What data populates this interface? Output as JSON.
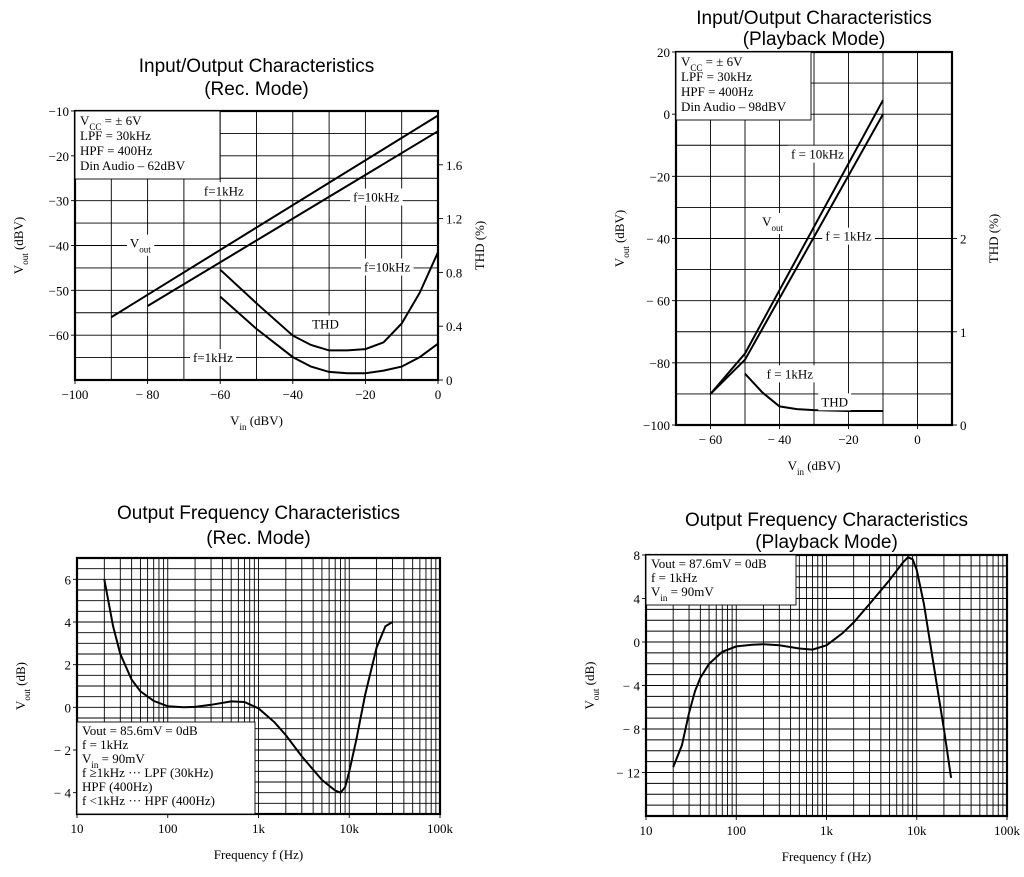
{
  "chart_data": [
    {
      "id": "rec-io",
      "type": "line",
      "title": [
        "Input/Output Characteristics",
        "(Rec. Mode)"
      ],
      "xlabel": [
        "V",
        "in",
        " (dBV)"
      ],
      "ylabel": [
        "V",
        "out",
        " (dBV)"
      ],
      "y2label": "THD (%)",
      "xlim": [
        -100,
        0
      ],
      "ylim": [
        -70,
        -10
      ],
      "y2lim": [
        0,
        2.0
      ],
      "xticks": [
        -100,
        -80,
        -60,
        -40,
        -20,
        0
      ],
      "xtick_labels": [
        "−100",
        "− 80",
        "−60",
        "−40",
        "−20",
        "0"
      ],
      "yticks": [
        -10,
        -20,
        -30,
        -40,
        -50,
        -60
      ],
      "ytick_labels": [
        "−10",
        "−20",
        "−30",
        "−40",
        "−50",
        "−60"
      ],
      "y2ticks": [
        0,
        0.4,
        0.8,
        1.2,
        1.6
      ],
      "y2tick_labels": [
        "0",
        "0.4",
        "0.8",
        "1.2",
        "1.6"
      ],
      "grid": true,
      "info_box": [
        [
          "V",
          "CC",
          " = ± 6V"
        ],
        [
          "LPF = 30kHz"
        ],
        [
          "HPF = 400Hz"
        ],
        [
          "Din Audio – 62dBV"
        ]
      ],
      "series": [
        {
          "axis": "left",
          "x": [
            -90,
            0
          ],
          "y": [
            -56,
            -11
          ]
        },
        {
          "axis": "left",
          "x": [
            -80,
            0
          ],
          "y": [
            -53.5,
            -14.5
          ]
        },
        {
          "axis": "right",
          "x": [
            -60,
            -50,
            -40,
            -35,
            -30,
            -25,
            -20,
            -15,
            -10,
            -5,
            0
          ],
          "y": [
            0.82,
            0.57,
            0.33,
            0.26,
            0.22,
            0.22,
            0.23,
            0.28,
            0.42,
            0.65,
            0.95
          ]
        },
        {
          "axis": "right",
          "x": [
            -60,
            -50,
            -40,
            -35,
            -30,
            -25,
            -20,
            -15,
            -10,
            -5,
            0
          ],
          "y": [
            0.62,
            0.38,
            0.17,
            0.1,
            0.06,
            0.05,
            0.05,
            0.07,
            0.1,
            0.17,
            0.27
          ]
        }
      ],
      "annotations": [
        {
          "parts": [
            "V",
            "out"
          ],
          "x": -82,
          "y": -40.5
        },
        {
          "parts": [
            "f=1kHz"
          ],
          "x": -59,
          "y": -28.8
        },
        {
          "parts": [
            "f=10kHz"
          ],
          "x": -17,
          "y": -30.2
        },
        {
          "parts": [
            "f=10kHz"
          ],
          "x": -14,
          "y": -45.8
        },
        {
          "parts": [
            "THD"
          ],
          "x": -31,
          "y": -58.5
        },
        {
          "parts": [
            "f=1kHz"
          ],
          "x": -62,
          "y": -66
        }
      ]
    },
    {
      "id": "play-io",
      "type": "line",
      "title": [
        "Input/Output Characteristics",
        "(Playback Mode)"
      ],
      "xlabel": [
        "V",
        "in",
        " (dBV)"
      ],
      "ylabel": [
        "V",
        "out",
        " (dBV)"
      ],
      "y2label": "THD (%)",
      "xlim": [
        -70,
        10
      ],
      "ylim": [
        -100,
        20
      ],
      "y2lim": [
        0,
        4
      ],
      "xticks": [
        -60,
        -40,
        -20,
        0
      ],
      "xtick_labels": [
        "− 60",
        "− 40",
        "−20",
        "0"
      ],
      "yticks": [
        20,
        0,
        -20,
        -40,
        -60,
        -80,
        -100
      ],
      "ytick_labels": [
        "20",
        "0",
        "−20",
        "− 40",
        "− 60",
        "−80",
        "−100"
      ],
      "y2ticks": [
        0,
        1,
        2
      ],
      "y2tick_labels": [
        "0",
        "1",
        "2"
      ],
      "grid": true,
      "info_box": [
        [
          "V",
          "CC",
          " = ± 6V"
        ],
        [
          "LPF = 30kHz"
        ],
        [
          "HPF = 400Hz"
        ],
        [
          "Din Audio – 98dBV"
        ]
      ],
      "series": [
        {
          "axis": "left",
          "x": [
            -60,
            -50,
            -10
          ],
          "y": [
            -90,
            -77,
            4.5
          ]
        },
        {
          "axis": "left",
          "x": [
            -60,
            -50,
            -10
          ],
          "y": [
            -90,
            -79,
            0
          ]
        },
        {
          "axis": "right",
          "x": [
            -50,
            -45,
            -40,
            -35,
            -30,
            -20,
            -10
          ],
          "y": [
            0.55,
            0.35,
            0.2,
            0.17,
            0.16,
            0.15,
            0.15
          ]
        }
      ],
      "annotations": [
        {
          "parts": [
            "f = 10kHz"
          ],
          "x": -29,
          "y": -14.3
        },
        {
          "parts": [
            "V",
            "out"
          ],
          "x": -42,
          "y": -36
        },
        {
          "parts": [
            "f = 1kHz"
          ],
          "x": -20,
          "y": -40.7
        },
        {
          "parts": [
            "f = 1kHz"
          ],
          "x": -37,
          "y": -85
        },
        {
          "parts": [
            "THD"
          ],
          "x": -24,
          "y": -94
        }
      ]
    },
    {
      "id": "rec-freq",
      "type": "line",
      "title": [
        "Output Frequency Characteristics",
        "(Rec. Mode)"
      ],
      "xlabel": [
        "Frequency f (Hz)"
      ],
      "ylabel": [
        "V",
        "out",
        " (dB)"
      ],
      "xscale": "log",
      "xlim": [
        10,
        100000
      ],
      "ylim": [
        -5,
        7
      ],
      "xticks": [
        10,
        100,
        1000,
        10000,
        100000
      ],
      "xtick_labels": [
        "10",
        "100",
        "1k",
        "10k",
        "100k"
      ],
      "yticks": [
        6,
        4,
        2,
        0,
        -2,
        -4
      ],
      "ytick_labels": [
        "6",
        "4",
        "2",
        "0",
        "− 2",
        "− 4"
      ],
      "grid": true,
      "info_box": [
        [
          "Vout = 85.6mV = 0dB"
        ],
        [
          "f = 1kHz"
        ],
        [
          "V",
          "in",
          " = 90mV"
        ],
        [
          "f ≥1kHz ··· LPF (30kHz)"
        ],
        [
          "                HPF (400Hz)"
        ],
        [
          "f <1kHz ··· HPF (400Hz)"
        ]
      ],
      "series": [
        {
          "axis": "left",
          "x": [
            20,
            25,
            30,
            40,
            50,
            70,
            100,
            150,
            200,
            300,
            500,
            700,
            1000,
            1500,
            2000,
            3000,
            5000,
            7000,
            8000,
            9000,
            10000,
            12000,
            15000,
            20000,
            25000,
            30000
          ],
          "y": [
            6.0,
            3.8,
            2.5,
            1.3,
            0.75,
            0.3,
            0.05,
            0.0,
            0.02,
            0.12,
            0.28,
            0.25,
            -0.05,
            -0.7,
            -1.3,
            -2.3,
            -3.4,
            -3.9,
            -4.0,
            -3.75,
            -3.0,
            -1.5,
            0.6,
            2.8,
            3.8,
            4.0
          ]
        }
      ],
      "annotations": []
    },
    {
      "id": "play-freq",
      "type": "line",
      "title": [
        "Output Frequency Characteristics",
        "(Playback Mode)"
      ],
      "xlabel": [
        "Frequency f (Hz)"
      ],
      "ylabel": [
        "V",
        "out",
        " (dB)"
      ],
      "xscale": "log",
      "xlim": [
        10,
        100000
      ],
      "ylim": [
        -16,
        8
      ],
      "xticks": [
        10,
        100,
        1000,
        10000,
        100000
      ],
      "xtick_labels": [
        "10",
        "100",
        "1k",
        "10k",
        "100k"
      ],
      "yticks": [
        8,
        4,
        0,
        -4,
        -8,
        -12
      ],
      "ytick_labels": [
        "8",
        "4",
        "0",
        "− 4",
        "− 8",
        "− 12"
      ],
      "grid": true,
      "info_box": [
        [
          "Vout = 87.6mV = 0dB"
        ],
        [
          "f = 1kHz"
        ],
        [
          "V",
          "in",
          " = 90mV"
        ]
      ],
      "series": [
        {
          "axis": "left",
          "x": [
            20,
            25,
            30,
            35,
            40,
            50,
            70,
            100,
            150,
            200,
            300,
            500,
            700,
            1000,
            1500,
            2000,
            3000,
            5000,
            7000,
            8000,
            9000,
            10000,
            12000,
            15000,
            20000,
            24000
          ],
          "y": [
            -11.5,
            -9.5,
            -6.5,
            -4.5,
            -3.3,
            -2.0,
            -0.9,
            -0.4,
            -0.25,
            -0.2,
            -0.3,
            -0.6,
            -0.7,
            -0.3,
            0.8,
            1.8,
            3.5,
            5.7,
            7.3,
            7.8,
            7.6,
            6.6,
            3.5,
            -1.5,
            -8,
            -12.5
          ]
        }
      ],
      "annotations": []
    }
  ]
}
